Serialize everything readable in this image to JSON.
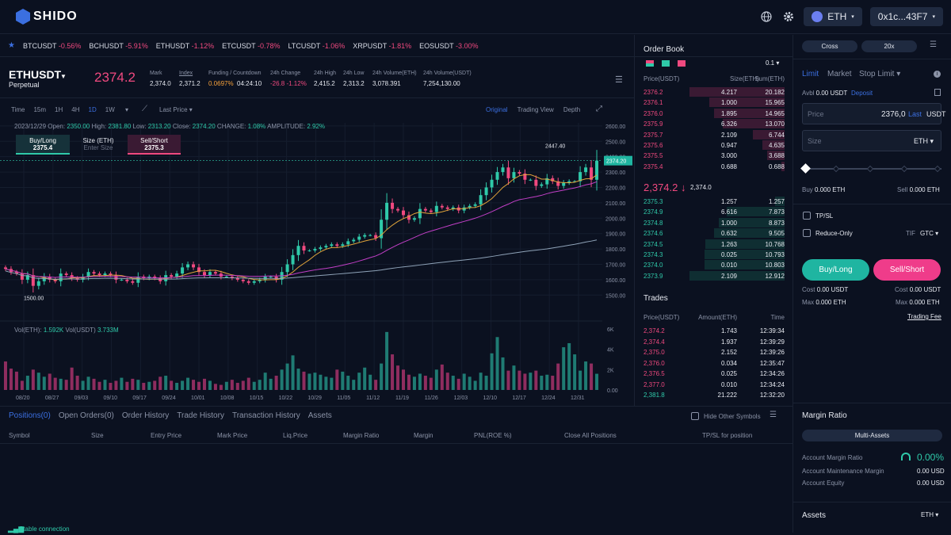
{
  "brand": {
    "name": "SHIDO"
  },
  "topbar": {
    "network": "ETH",
    "wallet": "0x1c...43F7"
  },
  "ticker": [
    {
      "sym": "BTCUSDT",
      "chg": "-0.56%"
    },
    {
      "sym": "BCHUSDT",
      "chg": "-5.91%"
    },
    {
      "sym": "ETHUSDT",
      "chg": "-1.12%"
    },
    {
      "sym": "ETCUSDT",
      "chg": "-0.78%"
    },
    {
      "sym": "LTCUSDT",
      "chg": "-1.06%"
    },
    {
      "sym": "XRPUSDT",
      "chg": "-1.81%"
    },
    {
      "sym": "EOSUSDT",
      "chg": "-3.00%"
    }
  ],
  "symbol": {
    "name": "ETHUSDT",
    "type": "Perpetual",
    "price": "2374.2",
    "mark_label": "Mark",
    "mark": "2,374.0",
    "index_label": "Index",
    "index": "2,371.2",
    "funding_label": "Funding / Countdown",
    "funding": "0.0697%",
    "countdown": "04:24:10",
    "chg_label": "24h Change",
    "chg": "-26.8 -1.12%",
    "high_label": "24h High",
    "high": "2,415.2",
    "low_label": "24h Low",
    "low": "2,313.2",
    "vol_eth_label": "24h Volume(ETH)",
    "vol_eth": "3,078.391",
    "vol_usdt_label": "24h Volume(USDT)",
    "vol_usdt": "7,254,130.00"
  },
  "chart_toolbar": {
    "intervals": [
      "Time",
      "15m",
      "1H",
      "4H",
      "1D",
      "1W"
    ],
    "active_interval": "1D",
    "price_type": "Last Price",
    "views": [
      "Original",
      "Trading View",
      "Depth"
    ]
  },
  "ohlc": {
    "date": "2023/12/29",
    "open_label": "Open:",
    "open": "2350.00",
    "high_label": "High:",
    "high": "2381.80",
    "low_label": "Low:",
    "low": "2313.20",
    "close_label": "Close:",
    "close": "2374.20",
    "change_label": "CHANGE:",
    "change": "1.08%",
    "amp_label": "AMPLITUDE:",
    "amp": "2.92%"
  },
  "quick_trade": {
    "buy_label": "Buy/Long",
    "buy_price": "2375.4",
    "size_label": "Size (ETH)",
    "size_placeholder": "Enter Size",
    "sell_label": "Sell/Short",
    "sell_price": "2375.3"
  },
  "volume_legend": {
    "label": "Vol(ETH):",
    "eth": "1.592K",
    "usdt_label": "Vol(USDT)",
    "usdt": "3.733M"
  },
  "chart_data": {
    "type": "candlestick",
    "x_labels": [
      "08/20",
      "08/27",
      "09/03",
      "09/10",
      "09/17",
      "09/24",
      "10/01",
      "10/08",
      "10/15",
      "10/22",
      "10/29",
      "11/05",
      "11/12",
      "11/19",
      "11/26",
      "12/03",
      "12/10",
      "12/17",
      "12/24",
      "12/31"
    ],
    "price_ticks": [
      "2600.00",
      "2500.00",
      "2400.00",
      "2300.00",
      "2200.00",
      "2100.00",
      "2000.00",
      "1900.00",
      "1800.00",
      "1700.00",
      "1600.00",
      "1500.00"
    ],
    "volume_ticks": [
      "6K",
      "4K",
      "2K",
      "0.00"
    ],
    "ylim": [
      1450,
      2620
    ],
    "vol_max": 6000,
    "last_price": "2374.20",
    "max_label": "2447.40",
    "min_label": "1500.00",
    "closes": [
      1670,
      1650,
      1640,
      1600,
      1630,
      1560,
      1590,
      1620,
      1600,
      1590,
      1640,
      1630,
      1610,
      1600,
      1620,
      1650,
      1640,
      1630,
      1640,
      1630,
      1600,
      1600,
      1590,
      1580,
      1620,
      1610,
      1620,
      1610,
      1590,
      1630,
      1620,
      1640,
      1680,
      1700,
      1680,
      1650,
      1630,
      1650,
      1640,
      1620,
      1620,
      1610,
      1600,
      1590,
      1580,
      1590,
      1600,
      1620,
      1620,
      1600,
      1650,
      1700,
      1760,
      1820,
      1790,
      1790,
      1800,
      1810,
      1820,
      1830,
      1820,
      1830,
      1850,
      1860,
      1880,
      1890,
      1890,
      1870,
      1990,
      2100,
      2060,
      2050,
      2020,
      1990,
      2000,
      2060,
      2050,
      2040,
      2080,
      2070,
      2060,
      2070,
      2050,
      2070,
      2080,
      2090,
      2150,
      2200,
      2250,
      2300,
      2330,
      2260,
      2300,
      2290,
      2250,
      2250,
      2210,
      2220,
      2260,
      2240,
      2210,
      2230,
      2240,
      2240,
      2300,
      2330,
      2250,
      2374
    ],
    "volumes": [
      2800,
      2100,
      1800,
      900,
      1400,
      2000,
      1700,
      1300,
      1600,
      1200,
      1100,
      1000,
      2200,
      1400,
      900,
      1300,
      1100,
      800,
      1000,
      700,
      900,
      1200,
      800,
      1100,
      1000,
      700,
      800,
      900,
      1300,
      1400,
      900,
      700,
      900,
      1200,
      1000,
      800,
      1100,
      900,
      600,
      500,
      800,
      1000,
      700,
      900,
      1200,
      800,
      1000,
      1700,
      1100,
      1400,
      2000,
      2600,
      3400,
      2100,
      1800,
      1600,
      1700,
      1500,
      1300,
      1200,
      2000,
      1800,
      1400,
      1000,
      1700,
      2200,
      1500,
      1000,
      2600,
      5700,
      3500,
      2400,
      2000,
      1500,
      1300,
      1600,
      1400,
      1200,
      2000,
      2500,
      1700,
      1400,
      1100,
      1600,
      1300,
      900,
      1700,
      1400,
      3600,
      5200,
      3200,
      1900,
      2400,
      1900,
      1600,
      1700,
      1900,
      1400,
      1500,
      1400,
      2600,
      4200,
      4600,
      3500,
      1900,
      2800,
      2600,
      1592
    ],
    "ma_note": "",
    "grid": true
  },
  "orderbook": {
    "title": "Order Book",
    "precision": "0.1",
    "headers": [
      "Price(USDT)",
      "Size(ETH)",
      "Sum(ETH)"
    ],
    "asks": [
      [
        "2376.2",
        "4.217",
        "20.182"
      ],
      [
        "2376.1",
        "1.000",
        "15.965"
      ],
      [
        "2376.0",
        "1.895",
        "14.965"
      ],
      [
        "2375.9",
        "6.326",
        "13.070"
      ],
      [
        "2375.7",
        "2.109",
        "6.744"
      ],
      [
        "2375.6",
        "0.947",
        "4.635"
      ],
      [
        "2375.5",
        "3.000",
        "3.688"
      ],
      [
        "2375.4",
        "0.688",
        "0.688"
      ]
    ],
    "ask_depth": [
      1.0,
      0.79,
      0.74,
      0.65,
      0.33,
      0.23,
      0.18,
      0.03
    ],
    "mid_price": "2,374.2",
    "mid_arrow": "↓",
    "mid_mark": "2,374.0",
    "bids": [
      [
        "2375.3",
        "1.257",
        "1.257"
      ],
      [
        "2374.9",
        "6.616",
        "7.873"
      ],
      [
        "2374.8",
        "1.000",
        "8.873"
      ],
      [
        "2374.6",
        "0.632",
        "9.505"
      ],
      [
        "2374.5",
        "1.263",
        "10.768"
      ],
      [
        "2374.3",
        "0.025",
        "10.793"
      ],
      [
        "2374.0",
        "0.010",
        "10.803"
      ],
      [
        "2373.9",
        "2.109",
        "12.912"
      ]
    ],
    "bid_depth": [
      0.1,
      0.61,
      0.69,
      0.74,
      0.83,
      0.84,
      0.84,
      1.0
    ]
  },
  "trades": {
    "title": "Trades",
    "headers": [
      "Price(USDT)",
      "Amount(ETH)",
      "Time"
    ],
    "rows": [
      [
        "2,374.2",
        "1.743",
        "12:39:34",
        "neg"
      ],
      [
        "2,374.4",
        "1.937",
        "12:39:29",
        "neg"
      ],
      [
        "2,375.0",
        "2.152",
        "12:39:26",
        "neg"
      ],
      [
        "2,376.0",
        "0.034",
        "12:35:47",
        "neg"
      ],
      [
        "2,376.5",
        "0.025",
        "12:34:26",
        "neg"
      ],
      [
        "2,377.0",
        "0.010",
        "12:34:24",
        "neg"
      ],
      [
        "2,381.8",
        "21.222",
        "12:32:20",
        "pos"
      ]
    ]
  },
  "bottom": {
    "tabs": [
      "Positions(0)",
      "Open Orders(0)",
      "Order History",
      "Trade History",
      "Transaction History",
      "Assets"
    ],
    "hide_other": "Hide Other Symbols",
    "columns": [
      "Symbol",
      "Size",
      "Entry Price",
      "Mark Price",
      "Liq.Price",
      "Margin Ratio",
      "Margin",
      "PNL(ROE %)",
      "Close All Positions",
      "TP/SL for position"
    ]
  },
  "order_form": {
    "margin_mode": "Cross",
    "leverage": "20x",
    "tabs": [
      "Limit",
      "Market",
      "Stop Limit"
    ],
    "avbl_label": "Avbl",
    "avbl": "0.00 USDT",
    "deposit": "Deposit",
    "price_label": "Price",
    "price_value": "2376,0",
    "last": "Last",
    "price_unit": "USDT",
    "size_label": "Size",
    "size_unit": "ETH",
    "buy_label": "Buy",
    "buy_val": "0.000 ETH",
    "sell_label": "Sell",
    "sell_val": "0.000 ETH",
    "tpsl": "TP/SL",
    "reduce_only": "Reduce-Only",
    "tif_label": "TIF",
    "tif": "GTC",
    "buy_btn": "Buy/Long",
    "sell_btn": "Sell/Short",
    "cost_label": "Cost",
    "cost_buy": "0.00 USDT",
    "cost_sell": "0.00 USDT",
    "max_label": "Max",
    "max_buy": "0.000 ETH",
    "max_sell": "0.000 ETH",
    "fee": "Trading Fee"
  },
  "margin": {
    "title": "Margin Ratio",
    "mode": "Multi-Assets",
    "ratio_label": "Account Margin Ratio",
    "ratio": "0.00%",
    "maint_label": "Account Maintenance Margin",
    "maint": "0.00 USD",
    "equity_label": "Account Equity",
    "equity": "0.00 USD"
  },
  "assets": {
    "title": "Assets",
    "coin": "ETH"
  },
  "status": {
    "text": "Stable connection"
  },
  "colors": {
    "up": "#2fc9a9",
    "down": "#f0497f",
    "accent": "#3b6fe0",
    "bg": "#0b1120"
  }
}
